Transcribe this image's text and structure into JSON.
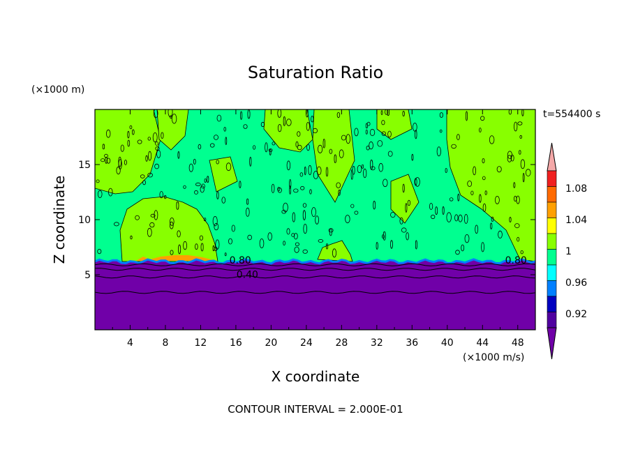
{
  "chart_data": {
    "type": "heatmap",
    "title": "Saturation Ratio",
    "xlabel": "X coordinate",
    "ylabel": "Z coordinate",
    "x_unit": "(×1000 m/s)",
    "y_unit": "(×1000 m)",
    "time_label": "t=554400 s",
    "footer": "CONTOUR INTERVAL = 2.000E-01",
    "xlim": [
      0,
      50
    ],
    "ylim": [
      0,
      20
    ],
    "x_ticks": [
      "4",
      "8",
      "12",
      "16",
      "20",
      "24",
      "28",
      "32",
      "36",
      "40",
      "44",
      "48"
    ],
    "y_ticks": [
      "5",
      "10",
      "15"
    ],
    "contour_labels": [
      {
        "text": "0.80",
        "x": 16.5,
        "z": 6.0
      },
      {
        "text": "0.40",
        "x": 17.3,
        "z": 4.7
      },
      {
        "text": "0.80",
        "x": 47.8,
        "z": 6.0
      }
    ],
    "legend": {
      "labels": [
        "1.08",
        "1.04",
        "1",
        "0.96",
        "0.92"
      ],
      "colors": [
        "#f4a8a8",
        "#f02020",
        "#ff6a00",
        "#ffa000",
        "#ffff00",
        "#88ff00",
        "#00ff90",
        "#00ffff",
        "#0080ff",
        "#0000c0",
        "#5000a0",
        "#7000a8"
      ]
    },
    "regions": {
      "dry_layer_color": "#7000a8",
      "dry_layer_top_z": 6.2,
      "saturated_color": "#00ff90",
      "supersaturated_color": "#88ff00",
      "warm_patch_color": "#ffa000"
    }
  }
}
